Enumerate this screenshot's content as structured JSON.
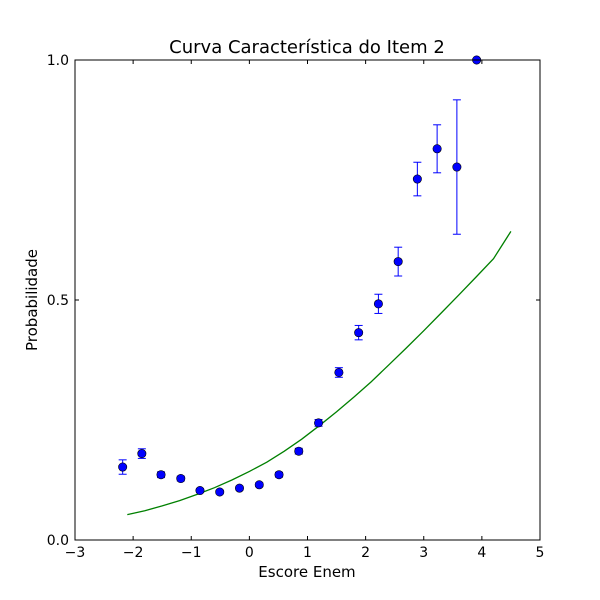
{
  "chart_data": {
    "type": "scatter",
    "title": "Curva Característica do Item 2",
    "xlabel": "Escore Enem",
    "ylabel": "Probabilidade",
    "xlim": [
      -3,
      5
    ],
    "ylim": [
      0,
      1
    ],
    "xticks": [
      -3,
      -2,
      -1,
      0,
      1,
      2,
      3,
      4,
      5
    ],
    "xtick_labels": [
      "−3",
      "−2",
      "−1",
      "0",
      "1",
      "2",
      "3",
      "4",
      "5"
    ],
    "yticks": [
      0,
      0.5,
      1
    ],
    "ytick_labels": [
      "0.0",
      "0.5",
      "1.0"
    ],
    "grid": false,
    "legend": "none",
    "colors": {
      "points": "#0000ff",
      "errorbars": "#0000ff",
      "curve": "#008000"
    },
    "series": [
      {
        "kind": "points_with_errorbars",
        "x": [
          -2.18,
          -1.85,
          -1.52,
          -1.18,
          -0.85,
          -0.51,
          -0.17,
          0.17,
          0.51,
          0.85,
          1.19,
          1.54,
          1.88,
          2.22,
          2.56,
          2.89,
          3.23,
          3.57,
          3.91
        ],
        "y": [
          0.152,
          0.18,
          0.136,
          0.128,
          0.103,
          0.1,
          0.108,
          0.115,
          0.136,
          0.185,
          0.244,
          0.349,
          0.432,
          0.492,
          0.58,
          0.752,
          0.815,
          0.777,
          1.0
        ],
        "yerr": [
          0.015,
          0.01,
          0.006,
          0.005,
          0.004,
          0.004,
          0.004,
          0.004,
          0.005,
          0.006,
          0.007,
          0.01,
          0.015,
          0.02,
          0.03,
          0.035,
          0.05,
          0.14,
          0.0
        ]
      },
      {
        "kind": "curve",
        "x": [
          -2.1,
          -1.8,
          -1.5,
          -1.2,
          -0.9,
          -0.6,
          -0.3,
          0.0,
          0.3,
          0.6,
          0.9,
          1.2,
          1.5,
          1.8,
          2.1,
          2.4,
          2.7,
          3.0,
          3.3,
          3.6,
          3.9,
          4.2,
          4.5
        ],
        "y": [
          0.053,
          0.061,
          0.071,
          0.082,
          0.095,
          0.109,
          0.125,
          0.143,
          0.162,
          0.185,
          0.21,
          0.238,
          0.267,
          0.298,
          0.33,
          0.365,
          0.4,
          0.436,
          0.473,
          0.51,
          0.548,
          0.586,
          0.643
        ]
      }
    ]
  }
}
